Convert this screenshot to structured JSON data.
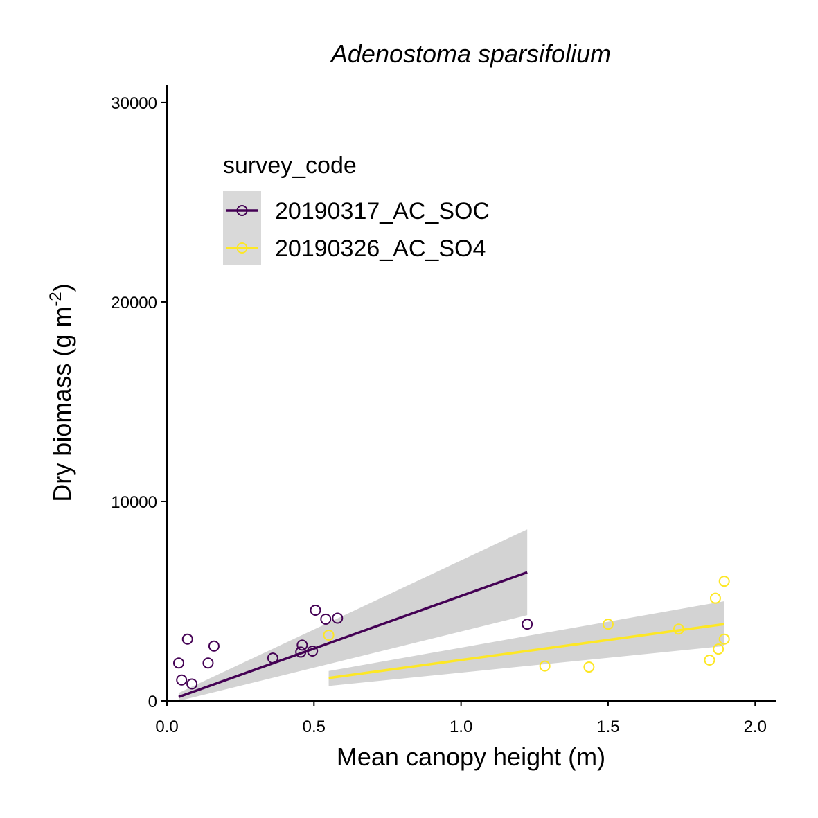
{
  "chart_data": {
    "type": "scatter",
    "title": "Adenostoma sparsifolium",
    "xlabel": "Mean canopy height (m)",
    "ylabel": "Dry biomass (g m",
    "ylabel_sup": "-2",
    "ylabel_close": ")",
    "xlim": [
      0,
      2.07
    ],
    "ylim": [
      0,
      30900
    ],
    "x_ticks": [
      0.0,
      0.5,
      1.0,
      1.5,
      2.0
    ],
    "x_tick_labels": [
      "0.0",
      "0.5",
      "1.0",
      "1.5",
      "2.0"
    ],
    "y_ticks": [
      0,
      10000,
      20000,
      30000
    ],
    "y_tick_labels": [
      "0",
      "10000",
      "20000",
      "30000"
    ],
    "grid": false,
    "legend": {
      "title": "survey_code",
      "position": "top-left"
    },
    "series": [
      {
        "name": "20190317_AC_SOC",
        "color": "#440154",
        "points": [
          {
            "x": 0.04,
            "y": 1900
          },
          {
            "x": 0.05,
            "y": 1050
          },
          {
            "x": 0.07,
            "y": 3100
          },
          {
            "x": 0.085,
            "y": 850
          },
          {
            "x": 0.14,
            "y": 1900
          },
          {
            "x": 0.16,
            "y": 2750
          },
          {
            "x": 0.36,
            "y": 2150
          },
          {
            "x": 0.455,
            "y": 2450
          },
          {
            "x": 0.46,
            "y": 2800
          },
          {
            "x": 0.495,
            "y": 2500
          },
          {
            "x": 0.505,
            "y": 4550
          },
          {
            "x": 0.54,
            "y": 4100
          },
          {
            "x": 0.58,
            "y": 4150
          },
          {
            "x": 1.225,
            "y": 3850
          }
        ],
        "fit": {
          "x": [
            0.04,
            1.225
          ],
          "y": [
            200,
            6450
          ]
        },
        "ci": {
          "x": [
            0.04,
            1.225
          ],
          "lower": [
            0,
            4300
          ],
          "upper": [
            400,
            8600
          ]
        }
      },
      {
        "name": "20190326_AC_SO4",
        "color": "#FDE725",
        "points": [
          {
            "x": 0.55,
            "y": 3300
          },
          {
            "x": 1.285,
            "y": 1750
          },
          {
            "x": 1.435,
            "y": 1700
          },
          {
            "x": 1.5,
            "y": 3850
          },
          {
            "x": 1.74,
            "y": 3600
          },
          {
            "x": 1.845,
            "y": 2050
          },
          {
            "x": 1.865,
            "y": 5150
          },
          {
            "x": 1.875,
            "y": 2600
          },
          {
            "x": 1.895,
            "y": 3100
          },
          {
            "x": 1.895,
            "y": 6000
          }
        ],
        "fit": {
          "x": [
            0.55,
            1.895
          ],
          "y": [
            1150,
            3850
          ]
        },
        "ci": {
          "x": [
            0.55,
            1.895
          ],
          "lower": [
            750,
            2750
          ],
          "upper": [
            1500,
            5000
          ]
        }
      }
    ],
    "ci_color": "#D3D3D3"
  }
}
